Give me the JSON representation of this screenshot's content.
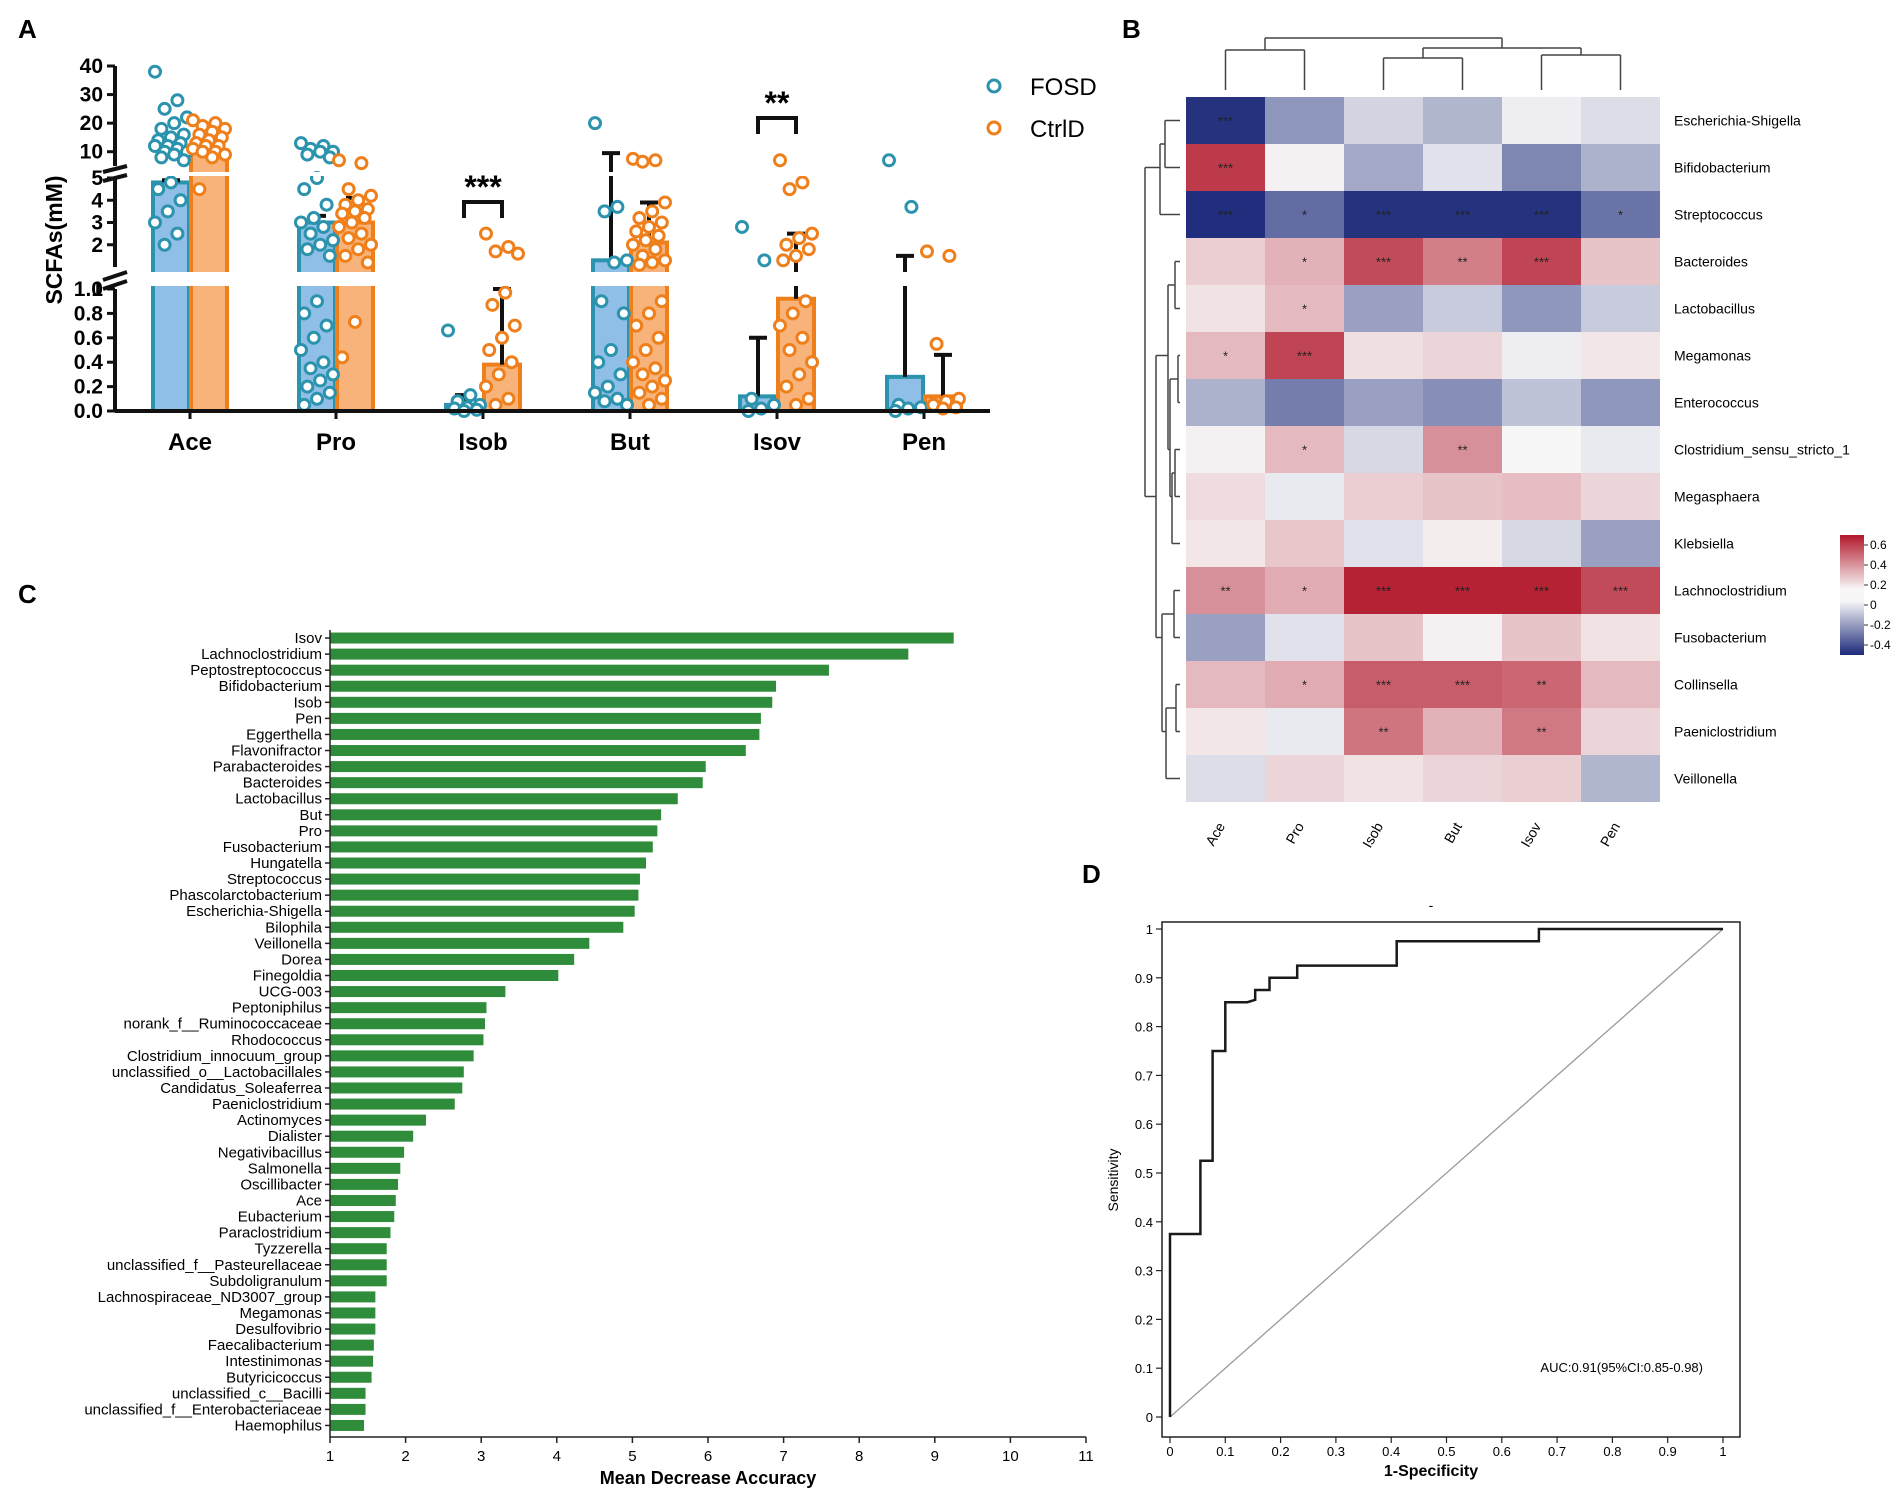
{
  "colors": {
    "fosd_fill": "#8fbfe6",
    "fosd_stroke": "#2b93ad",
    "ctrl_fill": "#f7b37a",
    "ctrl_stroke": "#ef7f1a",
    "rf_bar": "#2f8c3a",
    "heat_high": "#b2182b",
    "heat_mid": "#f7f7f7",
    "heat_low": "#1c2a7a",
    "roc_line": "#1a1a1a",
    "diag_line": "#9a9a9a"
  },
  "chart_data": [
    {
      "id": "A",
      "panel_label": "A",
      "type": "bar",
      "ylabel": "SCFAs(mM)",
      "categories": [
        "Ace",
        "Pro",
        "Isob",
        "But",
        "Isov",
        "Pen"
      ],
      "series": [
        {
          "name": "FOSD",
          "values": [
            4.8,
            3.0,
            0.05,
            1.3,
            0.12,
            0.28
          ],
          "error_upper": [
            4.9,
            3.3,
            0.13,
            9.5,
            0.6,
            1.5
          ]
        },
        {
          "name": "CtrlD",
          "values": [
            10.5,
            3.0,
            0.38,
            2.1,
            0.92,
            0.12
          ],
          "error_upper": [
            12.5,
            4.1,
            1.0,
            3.9,
            2.5,
            0.46
          ]
        }
      ],
      "y_axis_segments": [
        {
          "range": [
            0,
            1.0
          ],
          "ticks": [
            "0.0",
            "0.2",
            "0.4",
            "0.6",
            "0.8",
            "1.0"
          ]
        },
        {
          "range": [
            1,
            5
          ],
          "ticks": [
            "1",
            "2",
            "3",
            "4",
            "5"
          ]
        },
        {
          "range": [
            5,
            40
          ],
          "ticks": [
            "10",
            "20",
            "30",
            "40"
          ]
        }
      ],
      "points": {
        "FOSD": [
          [
            38,
            28,
            25,
            22,
            20,
            18,
            16,
            15,
            14,
            13,
            12,
            12,
            11,
            10,
            10,
            9,
            8,
            7,
            4.8,
            4.5,
            4.0,
            3.5,
            3.0,
            2.5,
            2.0
          ],
          [
            13,
            12,
            11,
            10,
            10,
            9,
            8,
            5.0,
            4.5,
            3.8,
            3.2,
            3.0,
            2.8,
            2.5,
            2.2,
            2.0,
            1.8,
            1.5,
            0.9,
            0.8,
            0.7,
            0.6,
            0.5,
            0.4,
            0.35,
            0.3,
            0.25,
            0.2,
            0.15,
            0.1,
            0.05
          ],
          [
            0.66,
            0.13,
            0.08,
            0.05,
            0.03,
            0.02,
            0.01,
            0.0
          ],
          [
            20,
            3.7,
            3.5,
            1.3,
            1.2,
            0.9,
            0.8,
            0.5,
            0.4,
            0.3,
            0.2,
            0.15,
            0.1,
            0.08,
            0.05
          ],
          [
            2.8,
            1.3,
            0.1,
            0.05,
            0.02,
            0.0
          ],
          [
            7,
            3.7,
            0.05,
            0.03,
            0.02,
            0.0
          ]
        ],
        "CtrlD": [
          [
            21,
            20,
            19,
            18,
            17,
            16,
            15,
            14,
            13,
            12,
            12,
            11,
            10,
            10,
            9,
            8,
            4.5
          ],
          [
            7,
            6,
            4.5,
            4.2,
            4.0,
            3.8,
            3.6,
            3.5,
            3.4,
            3.2,
            3.0,
            2.8,
            2.5,
            2.3,
            2.0,
            1.8,
            1.5,
            1.2,
            0.73,
            0.44
          ],
          [
            2.5,
            1.9,
            1.7,
            1.6,
            0.97,
            0.87,
            0.7,
            0.6,
            0.5,
            0.4,
            0.3,
            0.2,
            0.1,
            0.05
          ],
          [
            7.5,
            7,
            6.5,
            3.9,
            3.5,
            3.2,
            3.0,
            2.8,
            2.6,
            2.4,
            2.2,
            2.0,
            1.8,
            1.5,
            1.3,
            1.2,
            1.1,
            0.9,
            0.8,
            0.7,
            0.6,
            0.5,
            0.4,
            0.35,
            0.3,
            0.25,
            0.2,
            0.15,
            0.1,
            0.05
          ],
          [
            7,
            4.8,
            4.5,
            2.5,
            2.3,
            2.0,
            1.8,
            1.5,
            1.3,
            0.9,
            0.8,
            0.7,
            0.6,
            0.5,
            0.4,
            0.3,
            0.2,
            0.1,
            0.05
          ],
          [
            1.7,
            1.5,
            0.55,
            0.1,
            0.08,
            0.05,
            0.03,
            0.02
          ]
        ]
      },
      "significance": [
        {
          "category": "Isob",
          "label": "***"
        },
        {
          "category": "Isov",
          "label": "**"
        }
      ]
    },
    {
      "id": "B",
      "panel_label": "B",
      "type": "heatmap",
      "columns": [
        "Ace",
        "Pro",
        "Isob",
        "But",
        "Isov",
        "Pen"
      ],
      "rows": [
        "Escherichia-Shigella",
        "Bifidobacterium",
        "Streptococcus",
        "Bacteroides",
        "Lactobacillus",
        "Megamonas",
        "Enterococcus",
        "Clostridium_sensu_stricto_1",
        "Megasphaera",
        "Klebsiella",
        "Lachnoclostridium",
        "Fusobacterium",
        "Collinsella",
        "Paeniclostridium",
        "Veillonella"
      ],
      "values": [
        [
          -0.45,
          -0.22,
          -0.08,
          -0.15,
          -0.02,
          -0.06
        ],
        [
          0.55,
          0.02,
          -0.18,
          -0.05,
          -0.26,
          -0.16
        ],
        [
          -0.46,
          -0.32,
          -0.45,
          -0.45,
          -0.45,
          -0.3
        ],
        [
          0.12,
          0.2,
          0.5,
          0.35,
          0.52,
          0.15
        ],
        [
          0.06,
          0.18,
          -0.2,
          -0.1,
          -0.22,
          -0.1
        ],
        [
          0.18,
          0.52,
          0.07,
          0.1,
          -0.02,
          0.05
        ],
        [
          -0.16,
          -0.28,
          -0.2,
          -0.24,
          -0.12,
          -0.22
        ],
        [
          0.02,
          0.18,
          -0.07,
          0.3,
          0.0,
          -0.03
        ],
        [
          0.08,
          -0.03,
          0.12,
          0.15,
          0.17,
          0.1
        ],
        [
          0.05,
          0.14,
          -0.05,
          0.03,
          -0.07,
          -0.2
        ],
        [
          0.3,
          0.22,
          0.62,
          0.62,
          0.62,
          0.5
        ],
        [
          -0.2,
          -0.05,
          0.15,
          0.02,
          0.15,
          0.06
        ],
        [
          0.18,
          0.22,
          0.45,
          0.45,
          0.42,
          0.18
        ],
        [
          0.05,
          -0.03,
          0.38,
          0.2,
          0.37,
          0.1
        ],
        [
          -0.06,
          0.1,
          0.06,
          0.1,
          0.12,
          -0.15
        ]
      ],
      "stars": [
        [
          "***",
          "",
          "",
          "",
          "",
          ""
        ],
        [
          "***",
          "",
          "",
          "",
          "",
          ""
        ],
        [
          "***",
          "*",
          "***",
          "***",
          "***",
          "*"
        ],
        [
          "",
          "*",
          "***",
          "**",
          "***",
          ""
        ],
        [
          "",
          "*",
          "",
          "",
          "",
          ""
        ],
        [
          "*",
          "***",
          "",
          "",
          "",
          ""
        ],
        [
          "",
          "",
          "",
          "",
          "",
          ""
        ],
        [
          "",
          "*",
          "",
          "**",
          "",
          ""
        ],
        [
          "",
          "",
          "",
          "",
          "",
          ""
        ],
        [
          "",
          "",
          "",
          "",
          "",
          ""
        ],
        [
          "**",
          "*",
          "***",
          "***",
          "***",
          "***"
        ],
        [
          "",
          "",
          "",
          "",
          "",
          ""
        ],
        [
          "",
          "*",
          "***",
          "***",
          "**",
          ""
        ],
        [
          "",
          "",
          "**",
          "",
          "**",
          ""
        ],
        [
          "",
          "",
          "",
          "",
          "",
          ""
        ]
      ],
      "colorbar": {
        "range": [
          -0.5,
          0.7
        ],
        "ticks": [
          "0.6",
          "0.4",
          "0.2",
          "0",
          "-0.2",
          "-0.4"
        ]
      }
    },
    {
      "id": "C",
      "panel_label": "C",
      "type": "bar",
      "orientation": "horizontal",
      "xlabel": "Mean Decrease Accuracy",
      "xlim": [
        1,
        11
      ],
      "xticks": [
        "1",
        "2",
        "3",
        "4",
        "5",
        "6",
        "7",
        "8",
        "9",
        "10",
        "11"
      ],
      "categories": [
        "Isov",
        "Lachnoclostridium",
        "Peptostreptococcus",
        "Bifidobacterium",
        "Isob",
        "Pen",
        "Eggerthella",
        "Flavonifractor",
        "Parabacteroides",
        "Bacteroides",
        "Lactobacillus",
        "But",
        "Pro",
        "Fusobacterium",
        "Hungatella",
        "Streptococcus",
        "Phascolarctobacterium",
        "Escherichia-Shigella",
        "Bilophila",
        "Veillonella",
        "Dorea",
        "Finegoldia",
        "UCG-003",
        "Peptoniphilus",
        "norank_f__Ruminococcaceae",
        "Rhodococcus",
        "Clostridium_innocuum_group",
        "unclassified_o__Lactobacillales",
        "Candidatus_Soleaferrea",
        "Paeniclostridium",
        "Actinomyces",
        "Dialister",
        "Negativibacillus",
        "Salmonella",
        "Oscillibacter",
        "Ace",
        "Eubacterium",
        "Paraclostridium",
        "Tyzzerella",
        "unclassified_f__Pasteurellaceae",
        "Subdoligranulum",
        "Lachnospiraceae_ND3007_group",
        "Megamonas",
        "Desulfovibrio",
        "Faecalibacterium",
        "Intestinimonas",
        "Butyricicoccus",
        "unclassified_c__Bacilli",
        "unclassified_f__Enterobacteriaceae",
        "Haemophilus"
      ],
      "values": [
        9.25,
        8.65,
        7.6,
        6.9,
        6.85,
        6.7,
        6.68,
        6.5,
        5.97,
        5.93,
        5.6,
        5.38,
        5.33,
        5.27,
        5.18,
        5.1,
        5.08,
        5.03,
        4.88,
        4.43,
        4.23,
        4.02,
        3.32,
        3.07,
        3.05,
        3.03,
        2.9,
        2.77,
        2.75,
        2.65,
        2.27,
        2.1,
        1.98,
        1.93,
        1.9,
        1.87,
        1.85,
        1.8,
        1.75,
        1.75,
        1.75,
        1.6,
        1.6,
        1.6,
        1.58,
        1.57,
        1.55,
        1.47,
        1.47,
        1.45
      ]
    },
    {
      "id": "D",
      "panel_label": "D",
      "type": "line",
      "title": "-",
      "xlabel": "1-Specificity",
      "ylabel": "Sensitivity",
      "xlim": [
        0,
        1
      ],
      "ylim": [
        0,
        1
      ],
      "xticks": [
        "0",
        "0.1",
        "0.2",
        "0.3",
        "0.4",
        "0.5",
        "0.6",
        "0.7",
        "0.8",
        "0.9",
        "1"
      ],
      "yticks": [
        "0",
        "0.1",
        "0.2",
        "0.3",
        "0.4",
        "0.5",
        "0.6",
        "0.7",
        "0.8",
        "0.9",
        "1"
      ],
      "annotation": "AUC:0.91(95%CI:0.85-0.98)",
      "series": [
        {
          "name": "ROC",
          "x": [
            0,
            0,
            0.055,
            0.055,
            0.077,
            0.077,
            0.1,
            0.1,
            0.12,
            0.14,
            0.154,
            0.154,
            0.18,
            0.18,
            0.23,
            0.23,
            0.41,
            0.41,
            0.667,
            0.667,
            1.0
          ],
          "y": [
            0,
            0.375,
            0.375,
            0.525,
            0.525,
            0.75,
            0.75,
            0.85,
            0.85,
            0.85,
            0.855,
            0.875,
            0.875,
            0.9,
            0.9,
            0.925,
            0.925,
            0.975,
            0.975,
            1.0,
            1.0
          ]
        },
        {
          "name": "Reference",
          "x": [
            0,
            1
          ],
          "y": [
            0,
            1
          ]
        }
      ]
    }
  ]
}
